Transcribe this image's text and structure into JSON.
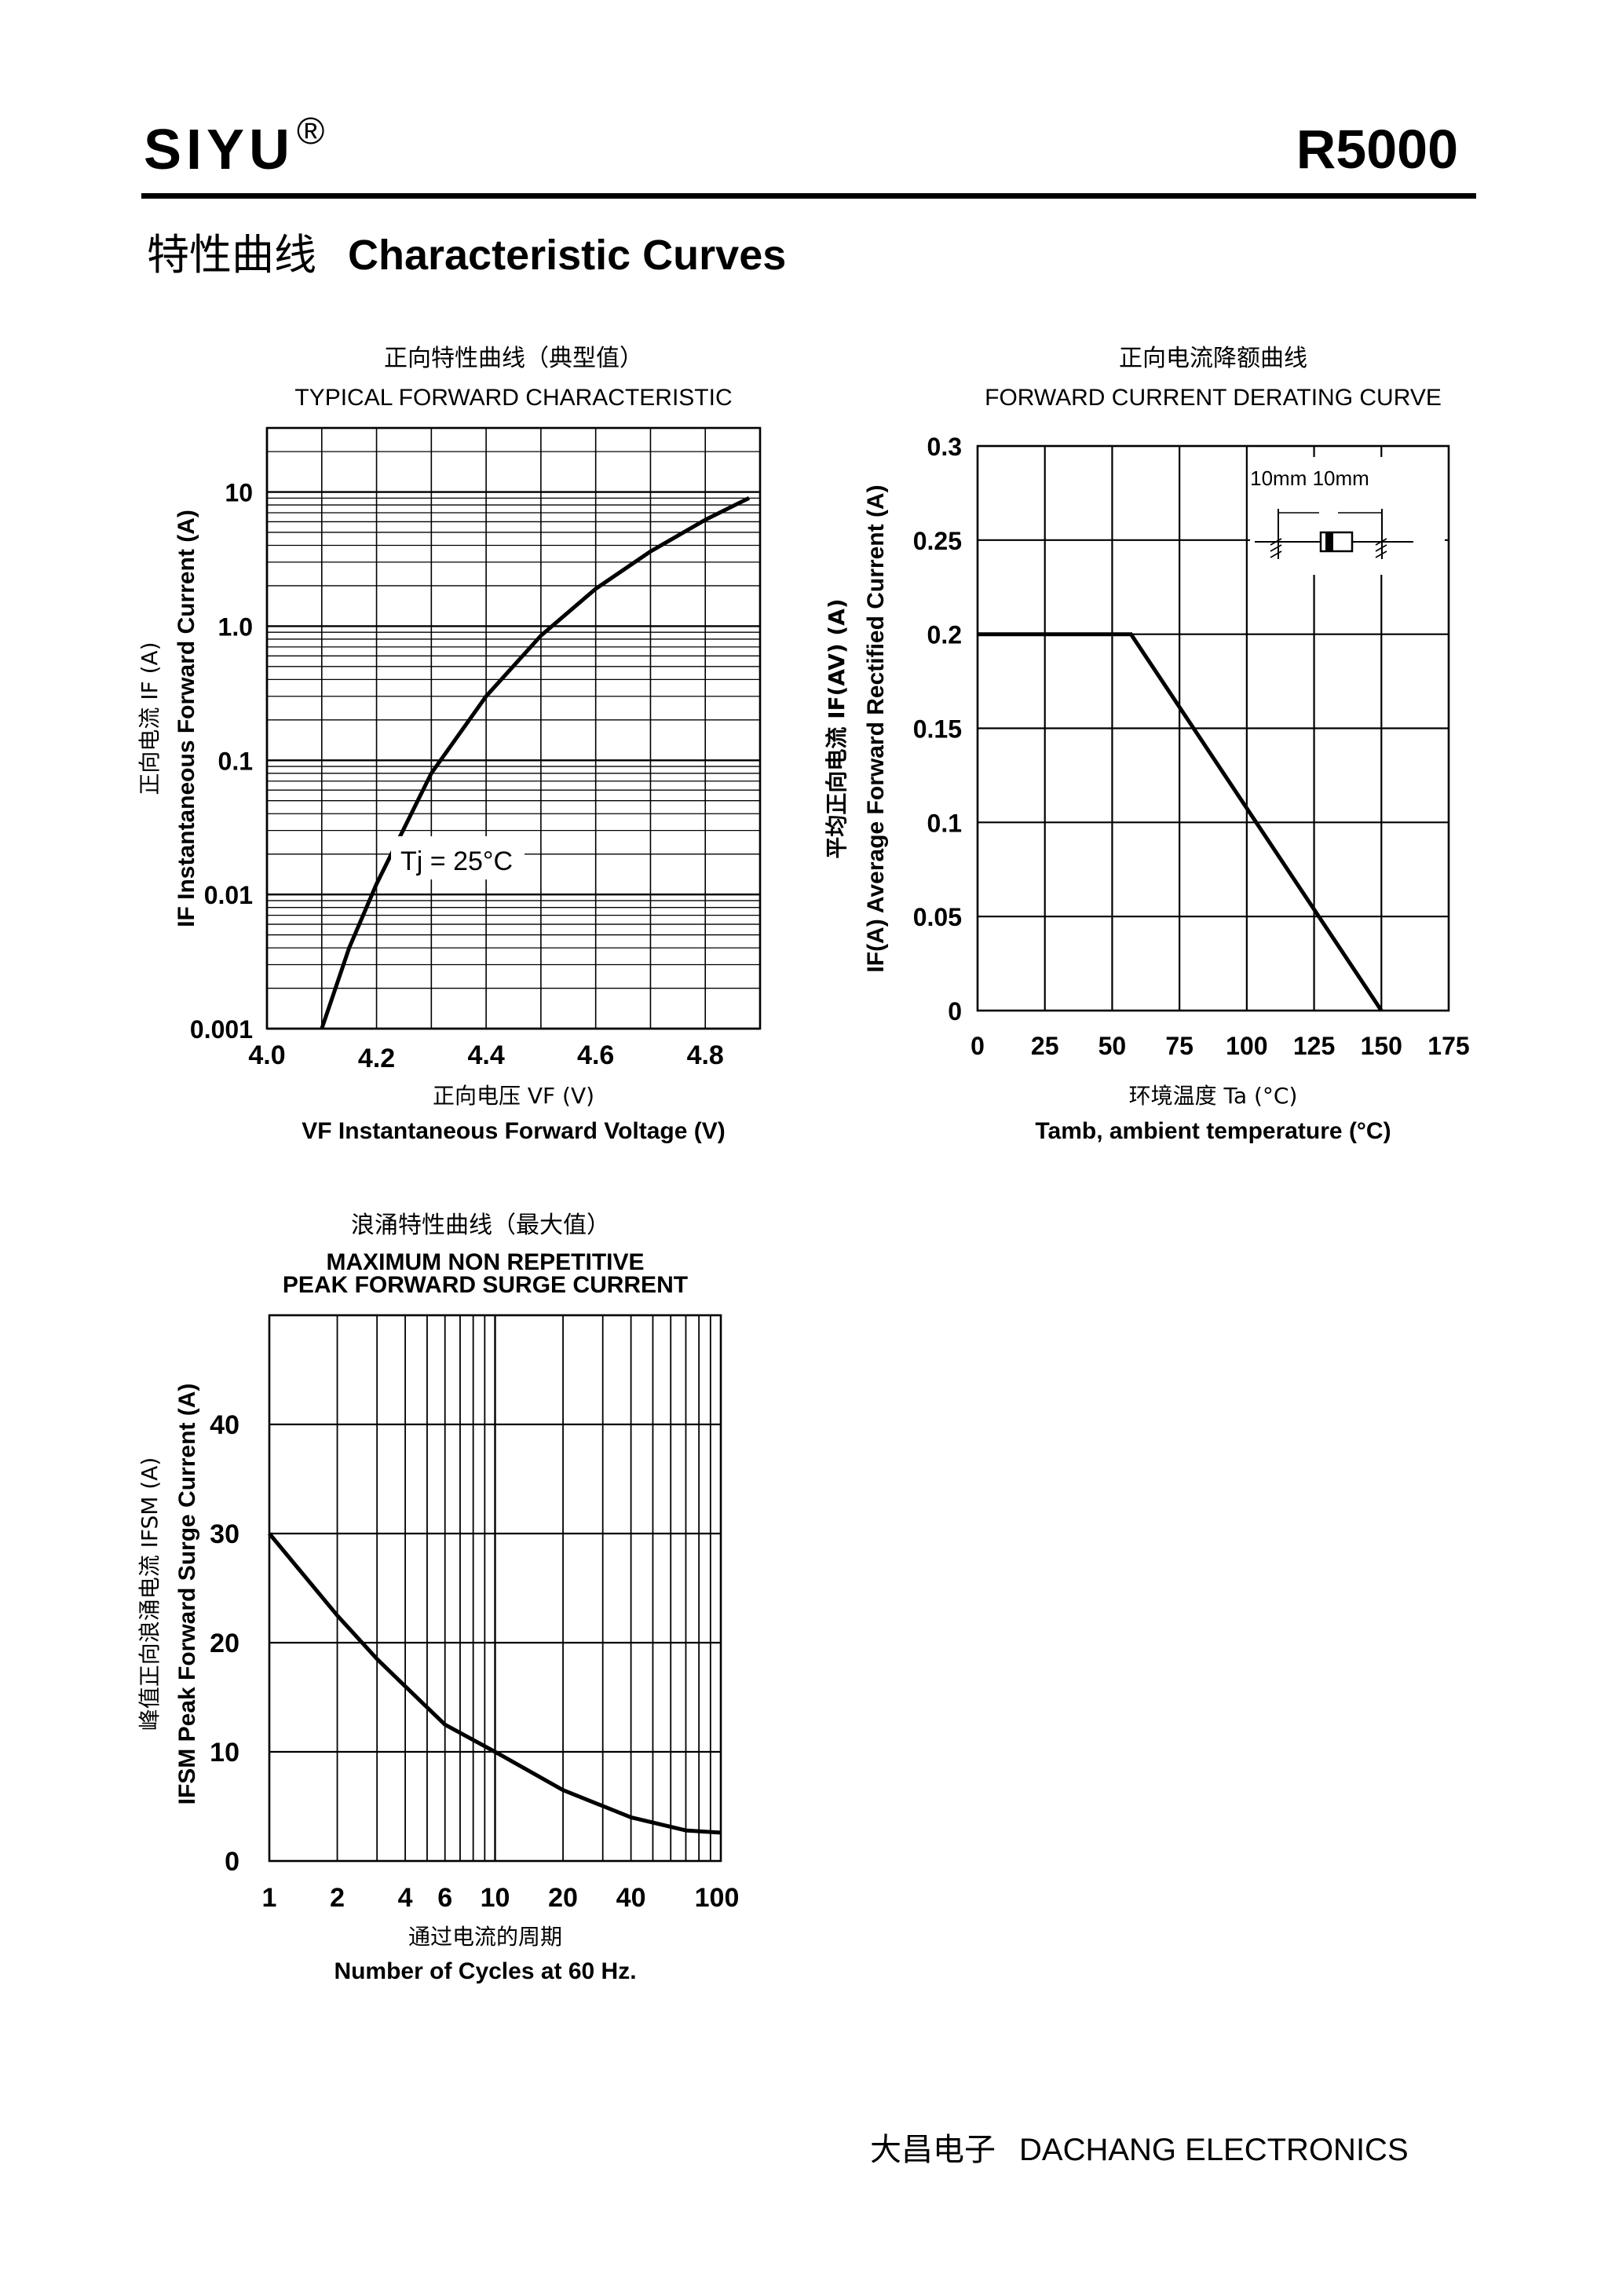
{
  "header": {
    "brand": "SIYU",
    "registered_mark": "®",
    "model": "R5000",
    "section_title_cn": "特性曲线",
    "section_title_en": "Characteristic Curves"
  },
  "footer": {
    "company_cn": "大昌电子",
    "company_en": "DACHANG ELECTRONICS"
  },
  "chart_data": [
    {
      "type": "line",
      "title_cn": "正向特性曲线（典型值）",
      "title": "TYPICAL FORWARD CHARACTERISTIC",
      "xlabel_cn": "正向电压   VF (V)",
      "xlabel": "VF  Instantaneous Forward Voltage (V)",
      "ylabel_cn": "正向电流    IF (A)",
      "ylabel": "IF Instantaneous Forward Current (A)",
      "xscale": "linear",
      "yscale": "log",
      "xlim": [
        4.0,
        4.9
      ],
      "ylim": [
        0.001,
        30
      ],
      "x_ticks": [
        4.0,
        4.2,
        4.4,
        4.6,
        4.8
      ],
      "x_tick_labels": [
        "4.0",
        "4.2",
        "4.4",
        "4.6",
        "4.8"
      ],
      "y_ticks": [
        0.001,
        0.01,
        0.1,
        1.0,
        10
      ],
      "y_tick_labels": [
        "0.001",
        "0.01",
        "0.1",
        "1.0",
        "10"
      ],
      "annotation": "Tj = 25°C",
      "series": [
        {
          "name": "Tj = 25°C",
          "x": [
            4.1,
            4.15,
            4.2,
            4.3,
            4.4,
            4.5,
            4.6,
            4.7,
            4.8,
            4.88
          ],
          "y": [
            0.001,
            0.004,
            0.012,
            0.08,
            0.3,
            0.85,
            1.9,
            3.6,
            6.2,
            9.0
          ]
        }
      ],
      "grid": true
    },
    {
      "type": "line",
      "title_cn": "正向电流降额曲线",
      "title": "FORWARD CURRENT DERATING CURVE",
      "xlabel_cn": "环境温度  Ta (°C)",
      "xlabel": "Tamb, ambient temperature (°C)",
      "ylabel_cn": "平均正向电流    IF(AV)  (A)",
      "ylabel": "IF(A)  Average Forward Rectified Current (A)",
      "xlim": [
        0,
        175
      ],
      "ylim": [
        0,
        0.3
      ],
      "x_ticks": [
        0,
        25,
        50,
        75,
        100,
        125,
        150,
        175
      ],
      "x_tick_labels": [
        "0",
        "25",
        "50",
        "75",
        "100",
        "125",
        "150",
        "175"
      ],
      "y_ticks": [
        0,
        0.05,
        0.1,
        0.15,
        0.2,
        0.25,
        0.3
      ],
      "y_tick_labels": [
        "0",
        "0.05",
        "0.1",
        "0.15",
        "0.2",
        "0.25",
        "0.3"
      ],
      "inset_label": "10mm  10mm",
      "series": [
        {
          "name": "derating",
          "x": [
            0,
            57,
            150
          ],
          "y": [
            0.2,
            0.2,
            0
          ]
        }
      ],
      "grid": true
    },
    {
      "type": "line",
      "title_cn": "浪涌特性曲线（最大值）",
      "title_line1": "MAXIMUM NON REPETITIVE",
      "title_line2": "PEAK FORWARD SURGE CURRENT",
      "xlabel_cn": "通过电流的周期",
      "xlabel": "Number  of  Cycles at 60 Hz.",
      "ylabel_cn": "峰值正向浪涌电流   IFSM (A)",
      "ylabel": "IFSM Peak Forward Surge Current (A)",
      "xscale": "log",
      "xlim": [
        1,
        100
      ],
      "ylim": [
        0,
        50
      ],
      "x_ticks": [
        1,
        2,
        4,
        6,
        10,
        20,
        40,
        100
      ],
      "x_tick_labels": [
        "1",
        "2",
        "4",
        "6",
        "10",
        "20",
        "40",
        "100"
      ],
      "y_ticks": [
        0,
        10,
        20,
        30,
        40
      ],
      "y_tick_labels": [
        "0",
        "10",
        "20",
        "30",
        "40"
      ],
      "series": [
        {
          "name": "IFSM",
          "x": [
            1,
            2,
            3,
            4,
            6,
            10,
            20,
            40,
            70,
            100
          ],
          "y": [
            30,
            22.5,
            18.5,
            16,
            12.5,
            10,
            6.5,
            4,
            2.8,
            2.6
          ]
        }
      ],
      "grid": true
    }
  ]
}
